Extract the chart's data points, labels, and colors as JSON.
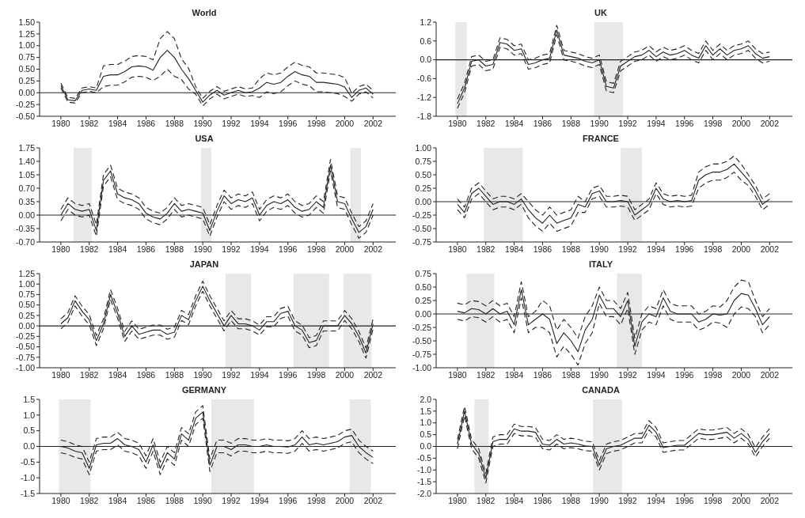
{
  "chart_data": [
    {
      "type": "line",
      "title": "World",
      "x": [
        1980,
        1980.5,
        1981,
        1981.5,
        1982,
        1982.5,
        1983,
        1983.5,
        1984,
        1984.5,
        1985,
        1985.5,
        1986,
        1986.5,
        1987,
        1987.5,
        1988,
        1988.5,
        1989,
        1989.5,
        1990,
        1990.5,
        1991,
        1991.5,
        1992,
        1992.5,
        1993,
        1993.5,
        1994,
        1994.5,
        1995,
        1995.5,
        1996,
        1996.5,
        1997,
        1997.5,
        1998,
        1998.5,
        1999,
        1999.5,
        2000,
        2000.5,
        2001,
        2001.5,
        2002
      ],
      "xlim": [
        1978.5,
        2003.6
      ],
      "xticks": [
        1980,
        1982,
        1984,
        1986,
        1988,
        1990,
        1992,
        1994,
        1996,
        1998,
        2000,
        2002
      ],
      "ylim": [
        -0.5,
        1.5
      ],
      "yticks": [
        {
          "value": -0.5,
          "label": "-0.50"
        },
        {
          "value": -0.25,
          "label": "-0.25"
        },
        {
          "value": 0,
          "label": "0.00"
        },
        {
          "value": 0.25,
          "label": "0.25"
        },
        {
          "value": 0.5,
          "label": "0.50"
        },
        {
          "value": 0.75,
          "label": "0.75"
        },
        {
          "value": 1,
          "label": "1.00"
        },
        {
          "value": 1.25,
          "label": "1.25"
        },
        {
          "value": 1.5,
          "label": "1.50"
        }
      ],
      "series": [
        {
          "color": "#222222",
          "line_style": "solid",
          "values": [
            0.15,
            -0.15,
            -0.17,
            0.05,
            0.08,
            0.05,
            0.35,
            0.38,
            0.38,
            0.45,
            0.55,
            0.57,
            0.55,
            0.48,
            0.75,
            0.9,
            0.75,
            0.5,
            0.3,
            0.05,
            -0.2,
            -0.05,
            0.05,
            -0.05,
            0.0,
            0.05,
            0.0,
            0.02,
            0.1,
            0.22,
            0.18,
            0.22,
            0.35,
            0.45,
            0.38,
            0.35,
            0.22,
            0.22,
            0.2,
            0.18,
            0.12,
            -0.1,
            0.05,
            0.1,
            -0.03
          ]
        },
        {
          "color": "#222222",
          "line_style": "dashed",
          "values": [
            0.2,
            -0.1,
            -0.12,
            0.1,
            0.13,
            0.1,
            0.57,
            0.6,
            0.6,
            0.67,
            0.77,
            0.79,
            0.77,
            0.7,
            1.15,
            1.3,
            1.15,
            0.72,
            0.52,
            0.13,
            -0.12,
            0.03,
            0.13,
            0.03,
            0.08,
            0.13,
            0.08,
            0.1,
            0.3,
            0.42,
            0.38,
            0.42,
            0.55,
            0.65,
            0.58,
            0.55,
            0.42,
            0.42,
            0.4,
            0.38,
            0.32,
            -0.02,
            0.13,
            0.18,
            0.05
          ]
        },
        {
          "color": "#222222",
          "line_style": "dashed",
          "values": [
            0.1,
            -0.2,
            -0.22,
            0.0,
            0.03,
            0.0,
            0.13,
            0.16,
            0.16,
            0.23,
            0.33,
            0.35,
            0.33,
            0.26,
            0.35,
            0.5,
            0.35,
            0.28,
            0.08,
            -0.03,
            -0.28,
            -0.13,
            -0.03,
            -0.13,
            -0.08,
            -0.03,
            -0.08,
            -0.06,
            -0.1,
            0.02,
            -0.02,
            0.02,
            0.15,
            0.25,
            0.18,
            0.15,
            0.02,
            0.02,
            0.0,
            -0.02,
            -0.08,
            -0.18,
            -0.03,
            0.02,
            -0.11
          ]
        }
      ],
      "ref_lines": [
        {
          "axis": "y",
          "value": 0,
          "color": "#222222"
        }
      ]
    },
    {
      "type": "line",
      "title": "UK",
      "x": [
        1980,
        1980.5,
        1981,
        1981.5,
        1982,
        1982.5,
        1983,
        1983.5,
        1984,
        1984.5,
        1985,
        1985.5,
        1986,
        1986.5,
        1987,
        1987.5,
        1988,
        1988.5,
        1989,
        1989.5,
        1990,
        1990.5,
        1991,
        1991.5,
        1992,
        1992.5,
        1993,
        1993.5,
        1994,
        1994.5,
        1995,
        1995.5,
        1996,
        1996.5,
        1997,
        1997.5,
        1998,
        1998.5,
        1999,
        1999.5,
        2000,
        2000.5,
        2001,
        2001.5,
        2002
      ],
      "xlim": [
        1978.5,
        2003.6
      ],
      "xticks": [
        1980,
        1982,
        1984,
        1986,
        1988,
        1990,
        1992,
        1994,
        1996,
        1998,
        2000,
        2002
      ],
      "ylim": [
        -1.8,
        1.2
      ],
      "yticks": [
        -1.8,
        -1.2,
        -0.6,
        {
          "value": 0,
          "label": "0.0"
        },
        0.6,
        1.2
      ],
      "series": [
        {
          "color": "#222222",
          "line_style": "solid",
          "values": [
            -1.4,
            -0.9,
            -0.05,
            0.0,
            -0.2,
            -0.15,
            0.55,
            0.5,
            0.3,
            0.35,
            -0.15,
            -0.1,
            0.0,
            0.05,
            0.95,
            0.15,
            0.1,
            0.05,
            -0.05,
            -0.1,
            0.0,
            -0.85,
            -0.9,
            -0.2,
            -0.05,
            0.1,
            0.15,
            0.3,
            0.1,
            0.25,
            0.15,
            0.2,
            0.3,
            0.15,
            0.05,
            0.45,
            0.15,
            0.35,
            0.15,
            0.3,
            0.35,
            0.45,
            0.2,
            0.05,
            0.1
          ]
        },
        {
          "color": "#222222",
          "line_style": "dashed",
          "values": [
            -1.25,
            -0.75,
            0.1,
            0.15,
            -0.05,
            0.0,
            0.7,
            0.65,
            0.45,
            0.5,
            0.0,
            0.05,
            0.15,
            0.2,
            1.1,
            0.3,
            0.25,
            0.2,
            0.1,
            0.05,
            0.15,
            -0.7,
            -0.75,
            -0.05,
            0.1,
            0.25,
            0.3,
            0.45,
            0.25,
            0.4,
            0.3,
            0.35,
            0.45,
            0.3,
            0.2,
            0.6,
            0.3,
            0.5,
            0.3,
            0.45,
            0.5,
            0.6,
            0.35,
            0.2,
            0.25
          ]
        },
        {
          "color": "#222222",
          "line_style": "dashed",
          "values": [
            -1.55,
            -1.05,
            -0.2,
            -0.15,
            -0.35,
            -0.3,
            0.4,
            0.35,
            0.15,
            0.2,
            -0.3,
            -0.25,
            -0.15,
            -0.1,
            0.8,
            0.0,
            -0.05,
            -0.1,
            -0.2,
            -0.25,
            -0.15,
            -1.0,
            -1.05,
            -0.35,
            -0.2,
            -0.05,
            0.0,
            0.15,
            -0.05,
            0.1,
            0.0,
            0.05,
            0.15,
            0.0,
            -0.1,
            0.3,
            0.0,
            0.2,
            0.0,
            0.15,
            0.2,
            0.3,
            0.05,
            -0.1,
            -0.05
          ]
        }
      ],
      "ref_lines": [
        {
          "axis": "y",
          "value": 0,
          "color": "#222222"
        }
      ],
      "bands": [
        {
          "axis": "x",
          "from": 1979.86,
          "to": 1980.66,
          "color": "#e8e8ea"
        },
        {
          "axis": "x",
          "from": 1989.64,
          "to": 1991.68,
          "color": "#e8e8ea"
        }
      ]
    },
    {
      "type": "line",
      "title": "USA",
      "x": [
        1980,
        1980.5,
        1981,
        1981.5,
        1982,
        1982.5,
        1983,
        1983.5,
        1984,
        1984.5,
        1985,
        1985.5,
        1986,
        1986.5,
        1987,
        1987.5,
        1988,
        1988.5,
        1989,
        1989.5,
        1990,
        1990.5,
        1991,
        1991.5,
        1992,
        1992.5,
        1993,
        1993.5,
        1994,
        1994.5,
        1995,
        1995.5,
        1996,
        1996.5,
        1997,
        1997.5,
        1998,
        1998.5,
        1999,
        1999.5,
        2000,
        2000.5,
        2001,
        2001.5,
        2002
      ],
      "xlim": [
        1978.5,
        2003.6
      ],
      "xticks": [
        1980,
        1982,
        1984,
        1986,
        1988,
        1990,
        1992,
        1994,
        1996,
        1998,
        2000,
        2002
      ],
      "ylim": [
        -0.7,
        1.75
      ],
      "yticks": [
        {
          "value": -0.7,
          "label": "-0.70"
        },
        -0.35,
        {
          "value": 0,
          "label": "0.00"
        },
        0.35,
        {
          "value": 0.7,
          "label": "0.70"
        },
        1.05,
        {
          "value": 1.4,
          "label": "1.40"
        },
        1.75
      ],
      "series": [
        {
          "color": "#222222",
          "line_style": "solid",
          "values": [
            0.0,
            0.3,
            0.15,
            0.1,
            0.15,
            -0.4,
            0.9,
            1.15,
            0.55,
            0.45,
            0.4,
            0.3,
            0.05,
            -0.05,
            -0.1,
            0.05,
            0.3,
            0.1,
            0.15,
            0.1,
            0.05,
            -0.4,
            0.1,
            0.5,
            0.3,
            0.4,
            0.35,
            0.45,
            0.0,
            0.25,
            0.35,
            0.3,
            0.4,
            0.2,
            0.1,
            0.15,
            0.35,
            0.2,
            1.3,
            0.35,
            0.3,
            -0.1,
            -0.45,
            -0.3,
            0.15
          ]
        },
        {
          "color": "#222222",
          "line_style": "dashed",
          "values": [
            0.15,
            0.45,
            0.3,
            0.25,
            0.3,
            -0.25,
            1.05,
            1.3,
            0.7,
            0.6,
            0.55,
            0.45,
            0.2,
            0.1,
            0.05,
            0.2,
            0.45,
            0.25,
            0.3,
            0.25,
            0.2,
            -0.25,
            0.25,
            0.65,
            0.45,
            0.55,
            0.5,
            0.6,
            0.15,
            0.4,
            0.5,
            0.45,
            0.55,
            0.35,
            0.25,
            0.3,
            0.5,
            0.35,
            1.45,
            0.5,
            0.45,
            0.05,
            -0.3,
            -0.15,
            0.3
          ]
        },
        {
          "color": "#222222",
          "line_style": "dashed",
          "values": [
            -0.15,
            0.15,
            0.0,
            -0.05,
            0.0,
            -0.55,
            0.75,
            1.0,
            0.4,
            0.3,
            0.25,
            0.15,
            -0.1,
            -0.2,
            -0.25,
            -0.1,
            0.15,
            -0.05,
            0.0,
            -0.05,
            -0.1,
            -0.55,
            -0.05,
            0.35,
            0.15,
            0.25,
            0.2,
            0.3,
            -0.15,
            0.1,
            0.2,
            0.15,
            0.25,
            0.05,
            -0.05,
            0.0,
            0.2,
            0.05,
            1.15,
            0.2,
            0.15,
            -0.25,
            -0.6,
            -0.45,
            0.0
          ]
        }
      ],
      "ref_lines": [
        {
          "axis": "y",
          "value": 0,
          "color": "#222222"
        }
      ],
      "bands": [
        {
          "axis": "x",
          "from": 1980.9,
          "to": 1982.17,
          "color": "#e8e8ea"
        },
        {
          "axis": "x",
          "from": 1989.87,
          "to": 1990.6,
          "color": "#e8e8ea"
        },
        {
          "axis": "x",
          "from": 2000.4,
          "to": 2001.15,
          "color": "#e8e8ea"
        }
      ]
    },
    {
      "type": "line",
      "title": "FRANCE",
      "x": [
        1980,
        1980.5,
        1981,
        1981.5,
        1982,
        1982.5,
        1983,
        1983.5,
        1984,
        1984.5,
        1985,
        1985.5,
        1986,
        1986.5,
        1987,
        1987.5,
        1988,
        1988.5,
        1989,
        1989.5,
        1990,
        1990.5,
        1991,
        1991.5,
        1992,
        1992.5,
        1993,
        1993.5,
        1994,
        1994.5,
        1995,
        1995.5,
        1996,
        1996.5,
        1997,
        1997.5,
        1998,
        1998.5,
        1999,
        1999.5,
        2000,
        2000.5,
        2001,
        2001.5,
        2002
      ],
      "xlim": [
        1978.5,
        2003.6
      ],
      "xticks": [
        1980,
        1982,
        1984,
        1986,
        1988,
        1990,
        1992,
        1994,
        1996,
        1998,
        2000,
        2002
      ],
      "ylim": [
        -0.75,
        1.0
      ],
      "yticks": [
        -0.75,
        {
          "value": -0.5,
          "label": "-0.50"
        },
        -0.25,
        {
          "value": 0,
          "label": "0.00"
        },
        0.25,
        {
          "value": 0.5,
          "label": "0.50"
        },
        0.75,
        {
          "value": 1,
          "label": "1.00"
        }
      ],
      "series": [
        {
          "color": "#222222",
          "line_style": "solid",
          "values": [
            -0.05,
            -0.2,
            0.15,
            0.25,
            0.1,
            -0.05,
            0.0,
            0.0,
            -0.05,
            0.05,
            -0.15,
            -0.3,
            -0.4,
            -0.25,
            -0.4,
            -0.35,
            -0.3,
            -0.05,
            -0.1,
            0.15,
            0.2,
            0.0,
            0.0,
            0.02,
            0.0,
            -0.25,
            -0.15,
            -0.05,
            0.25,
            0.05,
            0.0,
            0.02,
            0.0,
            0.02,
            0.4,
            0.5,
            0.55,
            0.55,
            0.6,
            0.7,
            0.55,
            0.4,
            0.2,
            -0.05,
            0.05
          ]
        },
        {
          "color": "#222222",
          "line_style": "dashed",
          "values": [
            0.05,
            -0.1,
            0.25,
            0.35,
            0.2,
            0.05,
            0.1,
            0.1,
            0.05,
            0.15,
            0.0,
            -0.15,
            -0.25,
            -0.1,
            -0.25,
            -0.2,
            -0.15,
            0.1,
            0.0,
            0.25,
            0.3,
            0.1,
            0.1,
            0.12,
            0.1,
            -0.15,
            -0.05,
            0.05,
            0.35,
            0.15,
            0.1,
            0.12,
            0.1,
            0.12,
            0.55,
            0.65,
            0.7,
            0.7,
            0.75,
            0.85,
            0.7,
            0.5,
            0.3,
            0.05,
            0.15
          ]
        },
        {
          "color": "#222222",
          "line_style": "dashed",
          "values": [
            -0.15,
            -0.3,
            0.05,
            0.15,
            0.0,
            -0.15,
            -0.1,
            -0.1,
            -0.15,
            -0.05,
            -0.3,
            -0.45,
            -0.55,
            -0.4,
            -0.55,
            -0.5,
            -0.45,
            -0.2,
            -0.2,
            0.05,
            0.1,
            -0.1,
            -0.1,
            -0.08,
            -0.1,
            -0.35,
            -0.25,
            -0.15,
            0.15,
            -0.05,
            -0.1,
            -0.08,
            -0.1,
            -0.08,
            0.25,
            0.35,
            0.4,
            0.4,
            0.45,
            0.55,
            0.4,
            0.3,
            0.1,
            -0.15,
            -0.05
          ]
        }
      ],
      "ref_lines": [
        {
          "axis": "y",
          "value": 0,
          "color": "#222222"
        }
      ],
      "bands": [
        {
          "axis": "x",
          "from": 1981.85,
          "to": 1984.6,
          "color": "#e8e8ea"
        },
        {
          "axis": "x",
          "from": 1991.5,
          "to": 1993.0,
          "color": "#e8e8ea"
        }
      ]
    },
    {
      "type": "line",
      "title": "JAPAN",
      "x": [
        1980,
        1980.5,
        1981,
        1981.5,
        1982,
        1982.5,
        1983,
        1983.5,
        1984,
        1984.5,
        1985,
        1985.5,
        1986,
        1986.5,
        1987,
        1987.5,
        1988,
        1988.5,
        1989,
        1989.5,
        1990,
        1990.5,
        1991,
        1991.5,
        1992,
        1992.5,
        1993,
        1993.5,
        1994,
        1994.5,
        1995,
        1995.5,
        1996,
        1996.5,
        1997,
        1997.5,
        1998,
        1998.5,
        1999,
        1999.5,
        2000,
        2000.5,
        2001,
        2001.5,
        2002
      ],
      "xlim": [
        1978.5,
        2003.6
      ],
      "xticks": [
        1980,
        1982,
        1984,
        1986,
        1988,
        1990,
        1992,
        1994,
        1996,
        1998,
        2000,
        2002
      ],
      "ylim": [
        -1.0,
        1.25
      ],
      "yticks": [
        {
          "value": -1,
          "label": "-1.00"
        },
        -0.75,
        {
          "value": -0.5,
          "label": "-0.50"
        },
        -0.25,
        {
          "value": 0,
          "label": "0.00"
        },
        0.25,
        {
          "value": 0.5,
          "label": "0.50"
        },
        0.75,
        {
          "value": 1,
          "label": "1.00"
        },
        1.25
      ],
      "series": [
        {
          "color": "#222222",
          "line_style": "solid",
          "values": [
            0.05,
            0.2,
            0.6,
            0.35,
            0.15,
            -0.35,
            0.05,
            0.75,
            0.3,
            -0.25,
            0.0,
            -0.2,
            -0.15,
            -0.1,
            -0.1,
            -0.2,
            -0.15,
            0.25,
            0.15,
            0.6,
            0.95,
            0.6,
            0.3,
            0.0,
            0.25,
            0.05,
            0.05,
            0.0,
            -0.1,
            0.1,
            0.1,
            0.3,
            0.35,
            0.0,
            -0.1,
            -0.4,
            -0.35,
            0.0,
            0.0,
            0.0,
            0.25,
            0.05,
            -0.25,
            -0.65,
            0.05
          ]
        },
        {
          "color": "#222222",
          "line_style": "dashed",
          "values": [
            0.17,
            0.32,
            0.72,
            0.47,
            0.27,
            -0.23,
            0.17,
            0.87,
            0.42,
            -0.13,
            0.12,
            -0.08,
            -0.03,
            0.02,
            0.02,
            -0.08,
            -0.03,
            0.37,
            0.27,
            0.72,
            1.07,
            0.72,
            0.42,
            0.12,
            0.37,
            0.17,
            0.17,
            0.12,
            0.02,
            0.22,
            0.22,
            0.42,
            0.47,
            0.12,
            0.02,
            -0.28,
            -0.23,
            0.12,
            0.12,
            0.12,
            0.37,
            0.17,
            -0.13,
            -0.53,
            0.17
          ]
        },
        {
          "color": "#222222",
          "line_style": "dashed",
          "values": [
            -0.07,
            0.08,
            0.48,
            0.23,
            0.03,
            -0.47,
            -0.07,
            0.63,
            0.18,
            -0.37,
            -0.12,
            -0.32,
            -0.27,
            -0.22,
            -0.22,
            -0.32,
            -0.27,
            0.13,
            0.03,
            0.48,
            0.83,
            0.48,
            0.18,
            -0.12,
            0.13,
            -0.07,
            -0.07,
            -0.12,
            -0.22,
            -0.02,
            -0.02,
            0.18,
            0.23,
            -0.12,
            -0.22,
            -0.52,
            -0.47,
            -0.12,
            -0.12,
            -0.12,
            0.13,
            -0.07,
            -0.37,
            -0.77,
            -0.07
          ]
        }
      ],
      "ref_lines": [
        {
          "axis": "y",
          "value": 0,
          "color": "#222222"
        }
      ],
      "bands": [
        {
          "axis": "x",
          "from": 1991.6,
          "to": 1993.4,
          "color": "#e8e8ea"
        },
        {
          "axis": "x",
          "from": 1996.4,
          "to": 1998.9,
          "color": "#e8e8ea"
        },
        {
          "axis": "x",
          "from": 1999.9,
          "to": 2001.9,
          "color": "#e8e8ea"
        }
      ]
    },
    {
      "type": "line",
      "title": "ITALY",
      "x": [
        1980,
        1980.5,
        1981,
        1981.5,
        1982,
        1982.5,
        1983,
        1983.5,
        1984,
        1984.5,
        1985,
        1985.5,
        1986,
        1986.5,
        1987,
        1987.5,
        1988,
        1988.5,
        1989,
        1989.5,
        1990,
        1990.5,
        1991,
        1991.5,
        1992,
        1992.5,
        1993,
        1993.5,
        1994,
        1994.5,
        1995,
        1995.5,
        1996,
        1996.5,
        1997,
        1997.5,
        1998,
        1998.5,
        1999,
        1999.5,
        2000,
        2000.5,
        2001,
        2001.5,
        2002
      ],
      "xlim": [
        1978.5,
        2003.6
      ],
      "xticks": [
        1980,
        1982,
        1984,
        1986,
        1988,
        1990,
        1992,
        1994,
        1996,
        1998,
        2000,
        2002
      ],
      "ylim": [
        -1.0,
        0.75
      ],
      "yticks": [
        {
          "value": -1,
          "label": "-1.00"
        },
        -0.75,
        {
          "value": -0.5,
          "label": "-0.50"
        },
        -0.25,
        {
          "value": 0,
          "label": "0.00"
        },
        0.25,
        {
          "value": 0.5,
          "label": "0.50"
        },
        0.75
      ],
      "series": [
        {
          "color": "#222222",
          "line_style": "solid",
          "values": [
            0.05,
            0.02,
            0.1,
            0.08,
            0.0,
            0.1,
            0.0,
            0.05,
            -0.2,
            0.45,
            -0.2,
            -0.1,
            0.0,
            -0.1,
            -0.55,
            -0.35,
            -0.5,
            -0.7,
            -0.3,
            -0.1,
            0.35,
            0.1,
            0.1,
            -0.05,
            0.25,
            -0.6,
            -0.15,
            0.0,
            -0.05,
            0.3,
            0.05,
            0.0,
            0.0,
            0.0,
            -0.15,
            -0.1,
            0.0,
            -0.02,
            0.0,
            0.25,
            0.38,
            0.35,
            0.1,
            -0.2,
            -0.05
          ]
        },
        {
          "color": "#222222",
          "line_style": "dashed",
          "values": [
            0.2,
            0.17,
            0.25,
            0.23,
            0.15,
            0.25,
            0.15,
            0.2,
            -0.05,
            0.6,
            -0.05,
            0.05,
            0.25,
            0.15,
            -0.3,
            -0.1,
            -0.25,
            -0.45,
            -0.05,
            0.15,
            0.5,
            0.25,
            0.25,
            0.1,
            0.4,
            -0.45,
            0.0,
            0.15,
            0.1,
            0.45,
            0.2,
            0.15,
            0.15,
            0.15,
            0.0,
            0.05,
            0.15,
            0.13,
            0.25,
            0.5,
            0.63,
            0.6,
            0.25,
            -0.05,
            0.1
          ]
        },
        {
          "color": "#222222",
          "line_style": "dashed",
          "values": [
            -0.1,
            -0.13,
            -0.05,
            -0.07,
            -0.15,
            -0.05,
            -0.15,
            -0.1,
            -0.35,
            0.3,
            -0.35,
            -0.25,
            -0.25,
            -0.35,
            -0.8,
            -0.6,
            -0.75,
            -0.95,
            -0.55,
            -0.35,
            0.2,
            -0.05,
            -0.05,
            -0.2,
            0.1,
            -0.75,
            -0.3,
            -0.15,
            -0.2,
            0.15,
            -0.1,
            -0.15,
            -0.15,
            -0.15,
            -0.3,
            -0.25,
            -0.15,
            -0.17,
            -0.25,
            0.0,
            0.13,
            0.1,
            -0.05,
            -0.35,
            -0.2
          ]
        }
      ],
      "ref_lines": [
        {
          "axis": "y",
          "value": 0,
          "color": "#222222"
        }
      ],
      "bands": [
        {
          "axis": "x",
          "from": 1980.65,
          "to": 1982.6,
          "color": "#e8e8ea"
        },
        {
          "axis": "x",
          "from": 1991.24,
          "to": 1993.0,
          "color": "#e8e8ea"
        }
      ]
    },
    {
      "type": "line",
      "title": "GERMANY",
      "x": [
        1980,
        1980.5,
        1981,
        1981.5,
        1982,
        1982.5,
        1983,
        1983.5,
        1984,
        1984.5,
        1985,
        1985.5,
        1986,
        1986.5,
        1987,
        1987.5,
        1988,
        1988.5,
        1989,
        1989.5,
        1990,
        1990.5,
        1991,
        1991.5,
        1992,
        1992.5,
        1993,
        1993.5,
        1994,
        1994.5,
        1995,
        1995.5,
        1996,
        1996.5,
        1997,
        1997.5,
        1998,
        1998.5,
        1999,
        1999.5,
        2000,
        2000.5,
        2001,
        2001.5,
        2002
      ],
      "xlim": [
        1978.5,
        2003.6
      ],
      "xticks": [
        1980,
        1982,
        1984,
        1986,
        1988,
        1990,
        1992,
        1994,
        1996,
        1998,
        2000,
        2002
      ],
      "ylim": [
        -1.5,
        1.5
      ],
      "yticks": [
        -1.5,
        {
          "value": -1,
          "label": "-1.0"
        },
        -0.5,
        {
          "value": 0,
          "label": "0.0"
        },
        0.5,
        {
          "value": 1,
          "label": "1.0"
        },
        1.5
      ],
      "series": [
        {
          "color": "#222222",
          "line_style": "solid",
          "values": [
            0.0,
            -0.05,
            -0.15,
            -0.2,
            -0.7,
            0.05,
            0.1,
            0.1,
            0.25,
            0.05,
            0.0,
            -0.1,
            -0.5,
            0.05,
            -0.7,
            -0.2,
            -0.4,
            0.4,
            0.2,
            0.9,
            1.1,
            -0.6,
            0.0,
            0.0,
            -0.1,
            0.05,
            0.05,
            0.0,
            0.0,
            0.05,
            0.0,
            0.0,
            -0.02,
            0.05,
            0.3,
            0.05,
            0.1,
            0.05,
            0.1,
            0.15,
            0.3,
            0.35,
            0.0,
            -0.2,
            -0.35
          ]
        },
        {
          "color": "#222222",
          "line_style": "dashed",
          "values": [
            0.2,
            0.15,
            0.05,
            0.0,
            -0.5,
            0.25,
            0.3,
            0.3,
            0.45,
            0.25,
            0.2,
            0.1,
            -0.3,
            0.25,
            -0.5,
            0.0,
            -0.2,
            0.6,
            0.4,
            1.1,
            1.3,
            -0.4,
            0.2,
            0.2,
            0.1,
            0.25,
            0.25,
            0.2,
            0.2,
            0.25,
            0.2,
            0.2,
            0.18,
            0.25,
            0.5,
            0.25,
            0.3,
            0.25,
            0.3,
            0.35,
            0.5,
            0.55,
            0.2,
            0.0,
            -0.15
          ]
        },
        {
          "color": "#222222",
          "line_style": "dashed",
          "values": [
            -0.2,
            -0.25,
            -0.35,
            -0.4,
            -0.9,
            -0.15,
            -0.1,
            -0.1,
            0.05,
            -0.15,
            -0.2,
            -0.3,
            -0.7,
            -0.15,
            -0.9,
            -0.4,
            -0.6,
            0.2,
            0.0,
            0.7,
            0.9,
            -0.8,
            -0.2,
            -0.2,
            -0.3,
            -0.15,
            -0.15,
            -0.2,
            -0.2,
            -0.15,
            -0.2,
            -0.2,
            -0.22,
            -0.15,
            0.1,
            -0.15,
            -0.1,
            -0.15,
            -0.1,
            -0.05,
            0.1,
            0.15,
            -0.2,
            -0.4,
            -0.55
          ]
        }
      ],
      "ref_lines": [
        {
          "axis": "y",
          "value": 0,
          "color": "#222222"
        }
      ],
      "bands": [
        {
          "axis": "x",
          "from": 1979.86,
          "to": 1982.1,
          "color": "#e8e8ea"
        },
        {
          "axis": "x",
          "from": 1990.6,
          "to": 1993.6,
          "color": "#e8e8ea"
        },
        {
          "axis": "x",
          "from": 2000.34,
          "to": 2001.85,
          "color": "#e8e8ea"
        }
      ]
    },
    {
      "type": "line",
      "title": "CANADA",
      "x": [
        1980,
        1980.5,
        1981,
        1981.5,
        1982,
        1982.5,
        1983,
        1983.5,
        1984,
        1984.5,
        1985,
        1985.5,
        1986,
        1986.5,
        1987,
        1987.5,
        1988,
        1988.5,
        1989,
        1989.5,
        1990,
        1990.5,
        1991,
        1991.5,
        1992,
        1992.5,
        1993,
        1993.5,
        1994,
        1994.5,
        1995,
        1995.5,
        1996,
        1996.5,
        1997,
        1997.5,
        1998,
        1998.5,
        1999,
        1999.5,
        2000,
        2000.5,
        2001,
        2001.5,
        2002
      ],
      "xlim": [
        1978.5,
        2003.6
      ],
      "xticks": [
        1980,
        1982,
        1984,
        1986,
        1988,
        1990,
        1992,
        1994,
        1996,
        1998,
        2000,
        2002
      ],
      "ylim": [
        -2.0,
        2.0
      ],
      "yticks": [
        {
          "value": -2,
          "label": "-2.0"
        },
        -1.5,
        {
          "value": -1,
          "label": "-1.0"
        },
        -0.5,
        {
          "value": 0,
          "label": "0.0"
        },
        0.5,
        {
          "value": 1,
          "label": "1.0"
        },
        1.5,
        {
          "value": 2,
          "label": "2.0"
        }
      ],
      "series": [
        {
          "color": "#222222",
          "line_style": "solid",
          "values": [
            0.1,
            1.5,
            0.1,
            -0.3,
            -1.35,
            0.2,
            0.3,
            0.3,
            0.75,
            0.65,
            0.65,
            0.6,
            0.1,
            0.05,
            0.3,
            0.1,
            0.15,
            0.1,
            0.02,
            0.0,
            -0.8,
            -0.1,
            0.0,
            0.05,
            0.2,
            0.35,
            0.35,
            0.9,
            0.6,
            -0.05,
            0.0,
            0.05,
            0.05,
            0.3,
            0.55,
            0.5,
            0.5,
            0.55,
            0.6,
            0.35,
            0.55,
            0.3,
            -0.25,
            0.2,
            0.55
          ]
        },
        {
          "color": "#222222",
          "line_style": "dashed",
          "values": [
            0.3,
            1.7,
            0.3,
            -0.1,
            -1.15,
            0.4,
            0.5,
            0.5,
            0.95,
            0.85,
            0.85,
            0.8,
            0.3,
            0.25,
            0.5,
            0.3,
            0.35,
            0.3,
            0.22,
            0.2,
            -0.6,
            0.1,
            0.2,
            0.25,
            0.4,
            0.55,
            0.55,
            1.1,
            0.8,
            0.15,
            0.2,
            0.25,
            0.25,
            0.5,
            0.75,
            0.7,
            0.7,
            0.75,
            0.8,
            0.55,
            0.75,
            0.5,
            -0.05,
            0.4,
            0.75
          ]
        },
        {
          "color": "#222222",
          "line_style": "dashed",
          "values": [
            -0.1,
            1.3,
            -0.1,
            -0.5,
            -1.55,
            0.0,
            0.1,
            0.1,
            0.55,
            0.45,
            0.45,
            0.4,
            -0.1,
            -0.15,
            0.1,
            -0.1,
            -0.05,
            -0.1,
            -0.18,
            -0.2,
            -1.0,
            -0.3,
            -0.2,
            -0.15,
            0.0,
            0.15,
            0.15,
            0.7,
            0.4,
            -0.25,
            -0.2,
            -0.15,
            -0.15,
            0.1,
            0.35,
            0.3,
            0.3,
            0.35,
            0.4,
            0.15,
            0.35,
            0.1,
            -0.45,
            0.0,
            0.35
          ]
        }
      ],
      "ref_lines": [
        {
          "axis": "y",
          "value": 0,
          "color": "#222222"
        }
      ],
      "bands": [
        {
          "axis": "x",
          "from": 1981.2,
          "to": 1982.2,
          "color": "#e8e8ea"
        },
        {
          "axis": "x",
          "from": 1989.55,
          "to": 1991.6,
          "color": "#e8e8ea"
        }
      ]
    }
  ]
}
